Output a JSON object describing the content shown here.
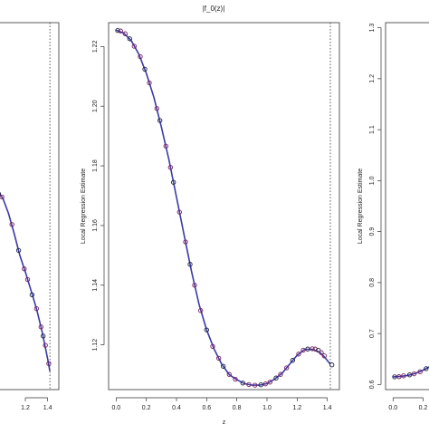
{
  "chart_data": [
    {
      "type": "line",
      "title": "",
      "xlabel": "",
      "ylabel": "",
      "xlim": [
        0,
        1.5
      ],
      "ylim": [
        1.06,
        1.3
      ],
      "x_ticks": [
        "1.2",
        "1.4"
      ],
      "x_tick_values": [
        1.2,
        1.4
      ],
      "vline": 1.42,
      "series": [
        {
          "x": [
            0.95,
            1.0,
            1.05,
            1.1,
            1.15,
            1.2,
            1.25,
            1.3,
            1.35,
            1.4,
            1.42
          ],
          "y": [
            1.19,
            1.185,
            1.175,
            1.162,
            1.148,
            1.137,
            1.125,
            1.113,
            1.098,
            1.08,
            1.072
          ]
        }
      ],
      "points": [
        {
          "x": 0.96,
          "y": 1.188
        },
        {
          "x": 0.99,
          "y": 1.186
        },
        {
          "x": 1.08,
          "y": 1.168
        },
        {
          "x": 1.14,
          "y": 1.151
        },
        {
          "x": 1.19,
          "y": 1.139
        },
        {
          "x": 1.22,
          "y": 1.132
        },
        {
          "x": 1.26,
          "y": 1.122
        },
        {
          "x": 1.3,
          "y": 1.113
        },
        {
          "x": 1.34,
          "y": 1.101
        },
        {
          "x": 1.36,
          "y": 1.095
        },
        {
          "x": 1.38,
          "y": 1.089
        },
        {
          "x": 1.41,
          "y": 1.077
        }
      ]
    },
    {
      "type": "line",
      "title": "|f_0(z)|",
      "xlabel": "z",
      "ylabel": "Local Regression Estimate",
      "xlim": [
        -0.05,
        1.48
      ],
      "ylim": [
        1.105,
        1.228
      ],
      "x_ticks": [
        "0.0",
        "0.2",
        "0.4",
        "0.6",
        "0.8",
        "1.0",
        "1.2",
        "1.4"
      ],
      "x_tick_values": [
        0.0,
        0.2,
        0.4,
        0.6,
        0.8,
        1.0,
        1.2,
        1.4
      ],
      "y_ticks": [
        "1.12",
        "1.14",
        "1.16",
        "1.18",
        "1.20",
        "1.22"
      ],
      "y_tick_values": [
        1.12,
        1.14,
        1.16,
        1.18,
        1.2,
        1.22
      ],
      "vline": 1.42,
      "series": [
        {
          "x": [
            0.0,
            0.05,
            0.1,
            0.15,
            0.2,
            0.25,
            0.3,
            0.35,
            0.4,
            0.45,
            0.5,
            0.55,
            0.6,
            0.65,
            0.7,
            0.75,
            0.8,
            0.85,
            0.9,
            0.95,
            1.0,
            1.05,
            1.1,
            1.15,
            1.2,
            1.25,
            1.3,
            1.35,
            1.38,
            1.42
          ],
          "y": [
            1.2255,
            1.2245,
            1.222,
            1.2175,
            1.211,
            1.203,
            1.193,
            1.182,
            1.1695,
            1.157,
            1.1445,
            1.1335,
            1.125,
            1.1185,
            1.1135,
            1.11,
            1.1083,
            1.107,
            1.1065,
            1.1065,
            1.107,
            1.1085,
            1.1105,
            1.1135,
            1.1165,
            1.1185,
            1.1185,
            1.1175,
            1.116,
            1.1135
          ]
        }
      ],
      "points": [
        {
          "x": 0.01,
          "y": 1.2254
        },
        {
          "x": 0.03,
          "y": 1.2252
        },
        {
          "x": 0.06,
          "y": 1.2243
        },
        {
          "x": 0.09,
          "y": 1.2226
        },
        {
          "x": 0.12,
          "y": 1.2201
        },
        {
          "x": 0.16,
          "y": 1.2166
        },
        {
          "x": 0.19,
          "y": 1.2124
        },
        {
          "x": 0.22,
          "y": 1.2078
        },
        {
          "x": 0.27,
          "y": 1.1992
        },
        {
          "x": 0.29,
          "y": 1.1952
        },
        {
          "x": 0.33,
          "y": 1.1866
        },
        {
          "x": 0.36,
          "y": 1.1795
        },
        {
          "x": 0.38,
          "y": 1.1745
        },
        {
          "x": 0.42,
          "y": 1.1645
        },
        {
          "x": 0.46,
          "y": 1.1545
        },
        {
          "x": 0.49,
          "y": 1.147
        },
        {
          "x": 0.52,
          "y": 1.14
        },
        {
          "x": 0.56,
          "y": 1.1315
        },
        {
          "x": 0.6,
          "y": 1.125
        },
        {
          "x": 0.64,
          "y": 1.1195
        },
        {
          "x": 0.68,
          "y": 1.1155
        },
        {
          "x": 0.71,
          "y": 1.1128
        },
        {
          "x": 0.75,
          "y": 1.1101
        },
        {
          "x": 0.79,
          "y": 1.1085
        },
        {
          "x": 0.84,
          "y": 1.1072
        },
        {
          "x": 0.88,
          "y": 1.1067
        },
        {
          "x": 0.92,
          "y": 1.1065
        },
        {
          "x": 0.96,
          "y": 1.1066
        },
        {
          "x": 0.99,
          "y": 1.1069
        },
        {
          "x": 1.02,
          "y": 1.1075
        },
        {
          "x": 1.06,
          "y": 1.1089
        },
        {
          "x": 1.09,
          "y": 1.1101
        },
        {
          "x": 1.13,
          "y": 1.1123
        },
        {
          "x": 1.17,
          "y": 1.1148
        },
        {
          "x": 1.21,
          "y": 1.1169
        },
        {
          "x": 1.24,
          "y": 1.1182
        },
        {
          "x": 1.27,
          "y": 1.1186
        },
        {
          "x": 1.3,
          "y": 1.1187
        },
        {
          "x": 1.32,
          "y": 1.1186
        },
        {
          "x": 1.34,
          "y": 1.1182
        },
        {
          "x": 1.36,
          "y": 1.1174
        },
        {
          "x": 1.38,
          "y": 1.1163
        },
        {
          "x": 1.43,
          "y": 1.1133
        }
      ]
    },
    {
      "type": "line",
      "title": "",
      "xlabel": "",
      "ylabel": "Local Regression Estimate",
      "xlim": [
        -0.05,
        1.48
      ],
      "ylim": [
        0.59,
        1.31
      ],
      "x_ticks": [
        "0.0",
        "0.2"
      ],
      "x_tick_values": [
        0.0,
        0.2
      ],
      "y_ticks": [
        "0.6",
        "0.7",
        "0.8",
        "0.9",
        "1.0",
        "1.1",
        "1.2",
        "1.3"
      ],
      "y_tick_values": [
        0.6,
        0.7,
        0.8,
        0.9,
        1.0,
        1.1,
        1.2,
        1.3
      ],
      "series": [
        {
          "x": [
            0.0,
            0.05,
            0.1,
            0.15,
            0.2,
            0.25,
            0.3
          ],
          "y": [
            0.615,
            0.616,
            0.618,
            0.622,
            0.628,
            0.636,
            0.645
          ]
        }
      ],
      "points": [
        {
          "x": 0.01,
          "y": 0.615
        },
        {
          "x": 0.04,
          "y": 0.6155
        },
        {
          "x": 0.07,
          "y": 0.617
        },
        {
          "x": 0.11,
          "y": 0.619
        },
        {
          "x": 0.14,
          "y": 0.621
        },
        {
          "x": 0.18,
          "y": 0.625
        },
        {
          "x": 0.22,
          "y": 0.631
        },
        {
          "x": 0.26,
          "y": 0.637
        }
      ]
    }
  ],
  "colors": {
    "line": "#3a3aa8",
    "point_stroke": "#7a1f5a",
    "point_dark": "#1e2440",
    "vline": "#333333",
    "axis": "#333333"
  }
}
